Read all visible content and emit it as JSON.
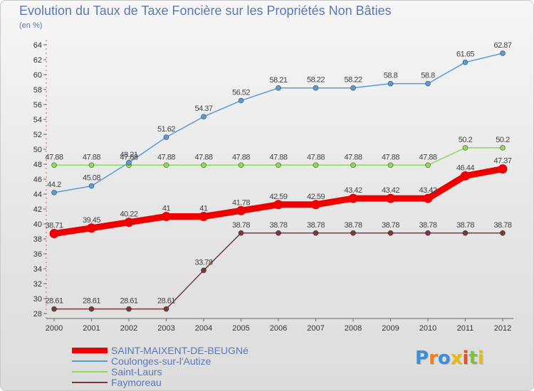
{
  "title": "Evolution du Taux de Taxe Foncière sur les Propriétés Non Bâties",
  "unit": "(en %)",
  "logo": "Proxiti",
  "chart_data": {
    "type": "line",
    "x": [
      "2000",
      "2001",
      "2002",
      "2003",
      "2004",
      "2005",
      "2006",
      "2007",
      "2008",
      "2009",
      "2010",
      "2011",
      "2012"
    ],
    "ylim": [
      28,
      64
    ],
    "yticks": [
      28,
      30,
      32,
      34,
      36,
      38,
      40,
      42,
      44,
      46,
      48,
      50,
      52,
      54,
      56,
      58,
      60,
      62,
      64
    ],
    "grid": false,
    "legend_position": "bottom-left",
    "series": [
      {
        "name": "SAINT-MAIXENT-DE-BEUGNé",
        "color": "#ee0000",
        "values": [
          38.71,
          39.45,
          40.22,
          41,
          41,
          41.78,
          42.59,
          42.59,
          43.42,
          43.42,
          43.42,
          46.44,
          47.37
        ],
        "labels": [
          "38.71",
          "39.45",
          "40.22",
          "41",
          "41",
          "41.78",
          "42.59",
          "42.59",
          "43.42",
          "43.42",
          "43.42",
          "46.44",
          "47.37"
        ]
      },
      {
        "name": "Coulonges-sur-l'Autize",
        "color": "#5b9bd5",
        "values": [
          44.2,
          45.08,
          48.21,
          51.62,
          54.37,
          56.52,
          58.21,
          58.22,
          58.22,
          58.8,
          58.8,
          61.65,
          62.87
        ],
        "labels": [
          "44.2",
          "45.08",
          "48.21",
          "51.62",
          "54.37",
          "56.52",
          "58.21",
          "58.22",
          "58.22",
          "58.8",
          "58.8",
          "61.65",
          "62.87"
        ]
      },
      {
        "name": "Saint-Laurs",
        "color": "#8ed85a",
        "values": [
          47.88,
          47.88,
          47.88,
          47.88,
          47.88,
          47.88,
          47.88,
          47.88,
          47.88,
          47.88,
          47.88,
          50.2,
          50.2
        ],
        "labels": [
          "47.88",
          "47.88",
          "47.88",
          "47.88",
          "47.88",
          "47.88",
          "47.88",
          "47.88",
          "47.88",
          "47.88",
          "47.88",
          "50.2",
          "50.2"
        ]
      },
      {
        "name": "Faymoreau",
        "color": "#7a3a3a",
        "values": [
          28.61,
          28.61,
          28.61,
          28.61,
          33.78,
          38.78,
          38.78,
          38.78,
          38.78,
          38.78,
          38.78,
          38.78,
          38.78
        ],
        "labels": [
          "28.61",
          "28.61",
          "28.61",
          "28.61",
          "33.78",
          "38.78",
          "38.78",
          "38.78",
          "38.78",
          "38.78",
          "38.78",
          "38.78",
          "38.78"
        ]
      }
    ]
  }
}
